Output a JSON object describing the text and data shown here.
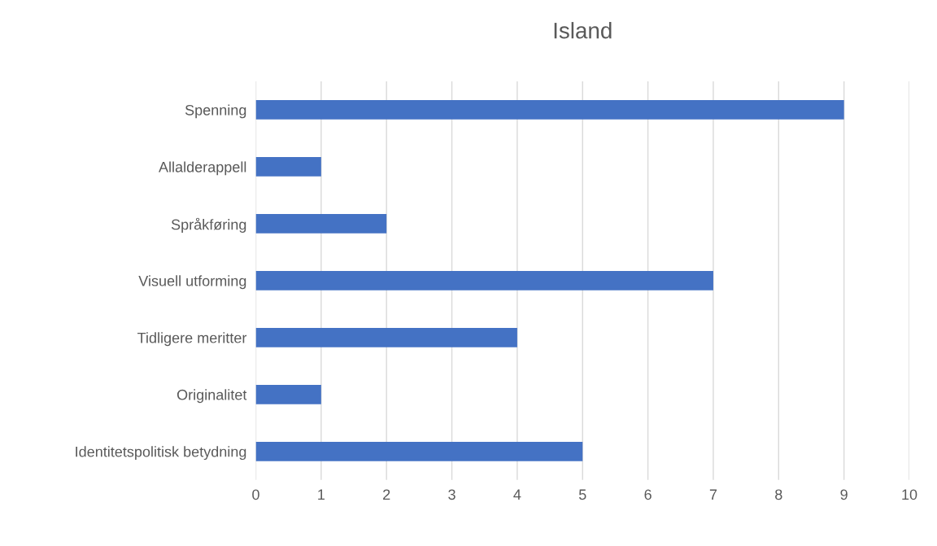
{
  "chart_data": {
    "type": "bar",
    "orientation": "horizontal",
    "title": "Island",
    "categories": [
      "Spenning",
      "Allalderappell",
      "Språkføring",
      "Visuell utforming",
      "Tidligere meritter",
      "Originalitet",
      "Identitetspolitisk betydning"
    ],
    "values": [
      9,
      1,
      2,
      7,
      4,
      1,
      5
    ],
    "color": "#4472c4",
    "xlim": [
      0,
      10
    ],
    "xticks": [
      0,
      1,
      2,
      3,
      4,
      5,
      6,
      7,
      8,
      9,
      10
    ],
    "grid": "x",
    "legend": false
  }
}
